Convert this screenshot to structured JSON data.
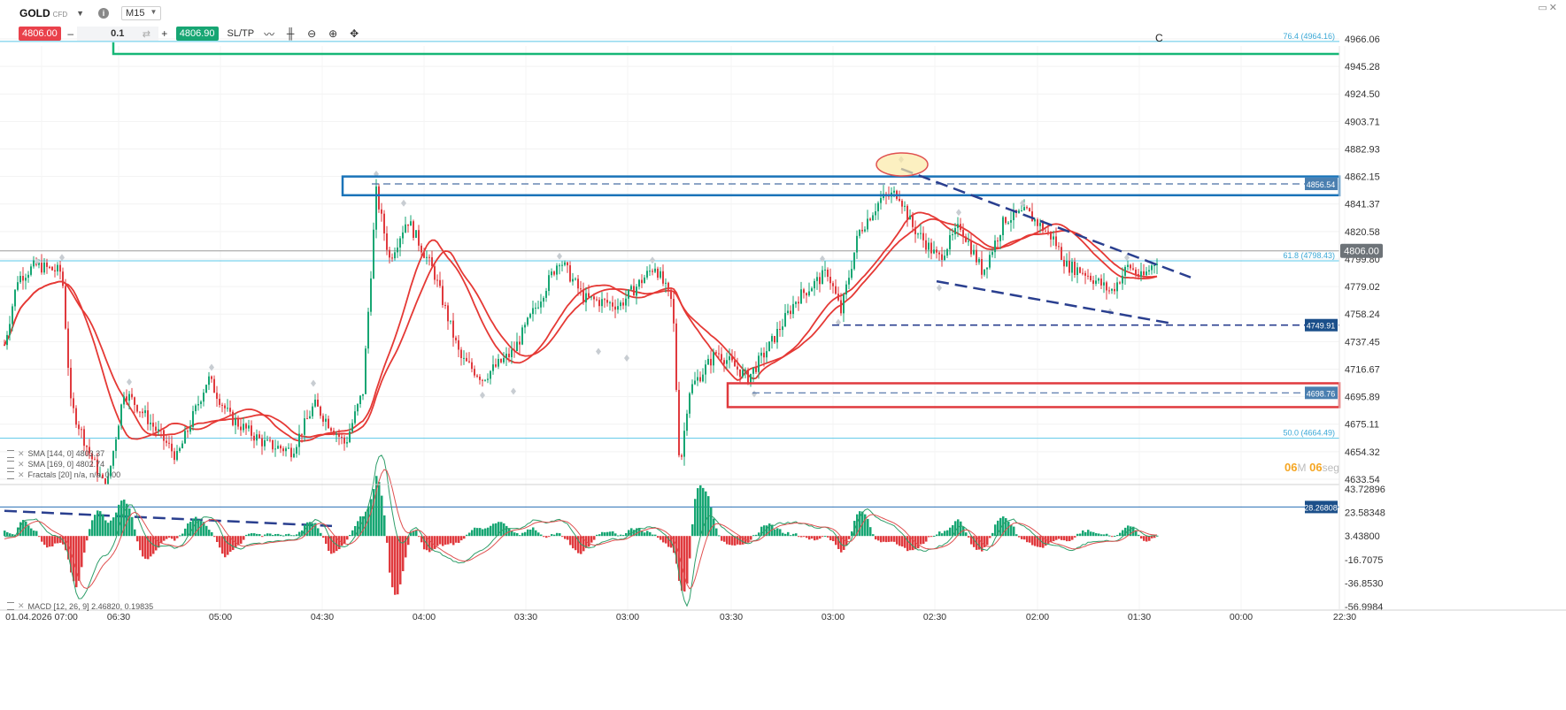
{
  "toolbar": {
    "symbol": "GOLD",
    "symbol_type": "CFD",
    "timeframe": "M15",
    "sell_price": "4806.00",
    "quantity": "0.1",
    "buy_price": "4806.90",
    "sltp_label": "SL/TP",
    "icons": [
      "caret-down-icon",
      "info-icon",
      "line-chart-icon",
      "candle-chart-icon",
      "zoom-out-icon",
      "zoom-in-icon",
      "crosshair-icon"
    ]
  },
  "colors": {
    "bull": "#17a673",
    "bear": "#e03a3e",
    "ma": "#e53935",
    "fib": "#5bc8e8",
    "resistance_box": "#1a73b8",
    "support_box": "#e03a3e",
    "target_line": "#17b777",
    "trendline": "#2a3f8f",
    "price_tag": "#1b4f8a",
    "timer": "#f5a623"
  },
  "price_axis": {
    "labels": [
      "4966.06",
      "4945.28",
      "4924.50",
      "4903.71",
      "4882.93",
      "4862.15",
      "4841.37",
      "4820.58",
      "4799.80",
      "4779.02",
      "4758.24",
      "4737.45",
      "4716.67",
      "4695.89",
      "4675.11",
      "4654.32",
      "4633.54"
    ]
  },
  "macd_axis": {
    "labels": [
      "43.72896",
      "23.58348",
      "3.43800",
      "-16.7075",
      "-36.8530",
      "-56.9984"
    ]
  },
  "time_axis": {
    "labels": [
      "01.04.2026 07:00",
      "06:30",
      "05:00",
      "04:30",
      "04:00",
      "03:30",
      "03:00",
      "03:30",
      "03:00",
      "02:30",
      "02:00",
      "01:30",
      "00:00",
      "22:30"
    ]
  },
  "annotations": {
    "fib_764": "76.4 (4964.16)",
    "fib_618": "61.8 (4798.43)",
    "fib_500": "50.0 (4664.49)",
    "wave_label": "C",
    "current_price": "4806.00",
    "level_resistance": "4856.54",
    "level_mid": "4749.91",
    "level_support": "4698.76",
    "macd_level": "28.26808"
  },
  "indicators": {
    "sma1": "SMA [144, 0] 4803.37",
    "sma2": "SMA [169, 0] 4802.74",
    "fractals": "Fractals [20] n/a, n/a, 0.00",
    "macd": "MACD [12, 26, 9] 2.46820, 0.19835"
  },
  "timer": {
    "minutes": "06",
    "minutes_unit": "M",
    "seconds": "06",
    "seconds_unit": "seg"
  }
}
